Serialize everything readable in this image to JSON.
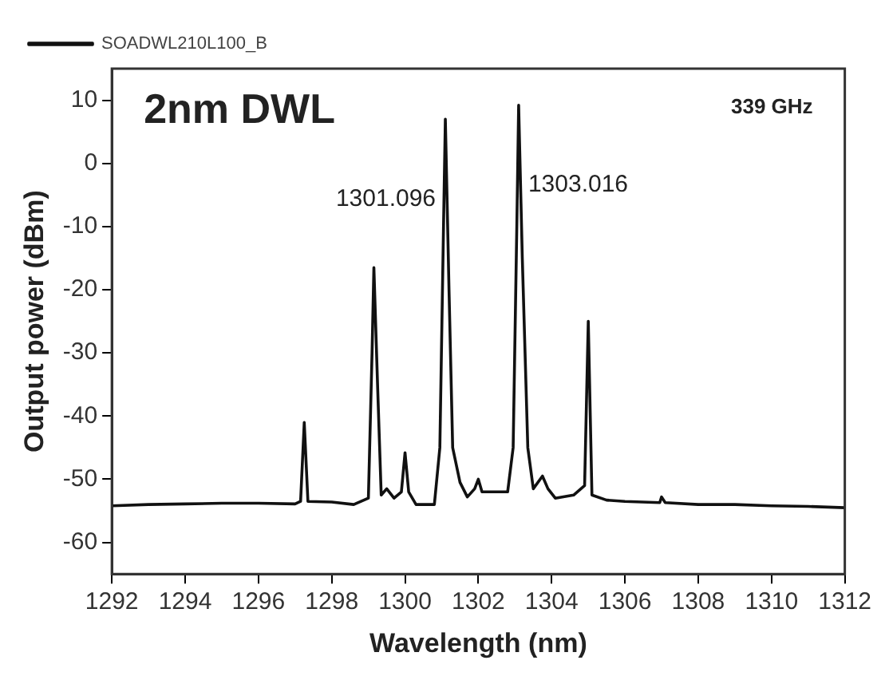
{
  "chart_data": {
    "type": "line",
    "xlabel": "Wavelength (nm)",
    "ylabel": "Output power (dBm)",
    "xlim": [
      1292,
      1312
    ],
    "xticks": [
      1292,
      1294,
      1296,
      1298,
      1300,
      1302,
      1304,
      1306,
      1308,
      1310,
      1312
    ],
    "ylim": [
      -65,
      15
    ],
    "yticks": [
      -60,
      -50,
      -40,
      -30,
      -20,
      -10,
      0,
      10
    ],
    "grid": false,
    "legend": "top left",
    "marker": "none",
    "line_style": "solid",
    "annotations": [
      "2nm DWL",
      "339 GHz",
      {
        "text": "1301.096",
        "x": 1301.1,
        "y": 7
      },
      {
        "text": "1303.016",
        "x": 1303.1,
        "y": 9.2
      }
    ],
    "series": [
      {
        "name": "SOADWL210L100_B",
        "color": "#111111",
        "x": [
          1292,
          1293,
          1294,
          1295,
          1296,
          1297,
          1297.15,
          1297.25,
          1297.35,
          1298,
          1298.6,
          1299.0,
          1299.1,
          1299.15,
          1299.25,
          1299.35,
          1299.5,
          1299.7,
          1299.9,
          1300.0,
          1300.1,
          1300.3,
          1300.8,
          1300.95,
          1301.05,
          1301.1,
          1301.2,
          1301.3,
          1301.5,
          1301.7,
          1301.9,
          1302.0,
          1302.1,
          1302.4,
          1302.8,
          1302.95,
          1303.05,
          1303.1,
          1303.2,
          1303.35,
          1303.5,
          1303.75,
          1303.9,
          1304.1,
          1304.6,
          1304.9,
          1305.0,
          1305.1,
          1305.5,
          1306,
          1306.95,
          1307.0,
          1307.1,
          1308,
          1309,
          1310,
          1311,
          1312
        ],
        "values": [
          -54.2,
          -54,
          -53.9,
          -53.8,
          -53.8,
          -53.9,
          -53.5,
          -41,
          -53.5,
          -53.6,
          -54,
          -53,
          -30,
          -16.5,
          -35,
          -52.5,
          -51.5,
          -53,
          -52,
          -45.8,
          -52,
          -54,
          -54,
          -45,
          -10,
          7,
          -20,
          -45,
          -50.5,
          -52.8,
          -51.5,
          -50,
          -52,
          -52,
          -52,
          -45,
          -10,
          9.2,
          -15,
          -45,
          -51.5,
          -49.5,
          -51.5,
          -53,
          -52.5,
          -51,
          -25,
          -52.5,
          -53.3,
          -53.5,
          -53.7,
          -52.8,
          -53.7,
          -54,
          -54,
          -54.2,
          -54.3,
          -54.5
        ]
      }
    ]
  }
}
